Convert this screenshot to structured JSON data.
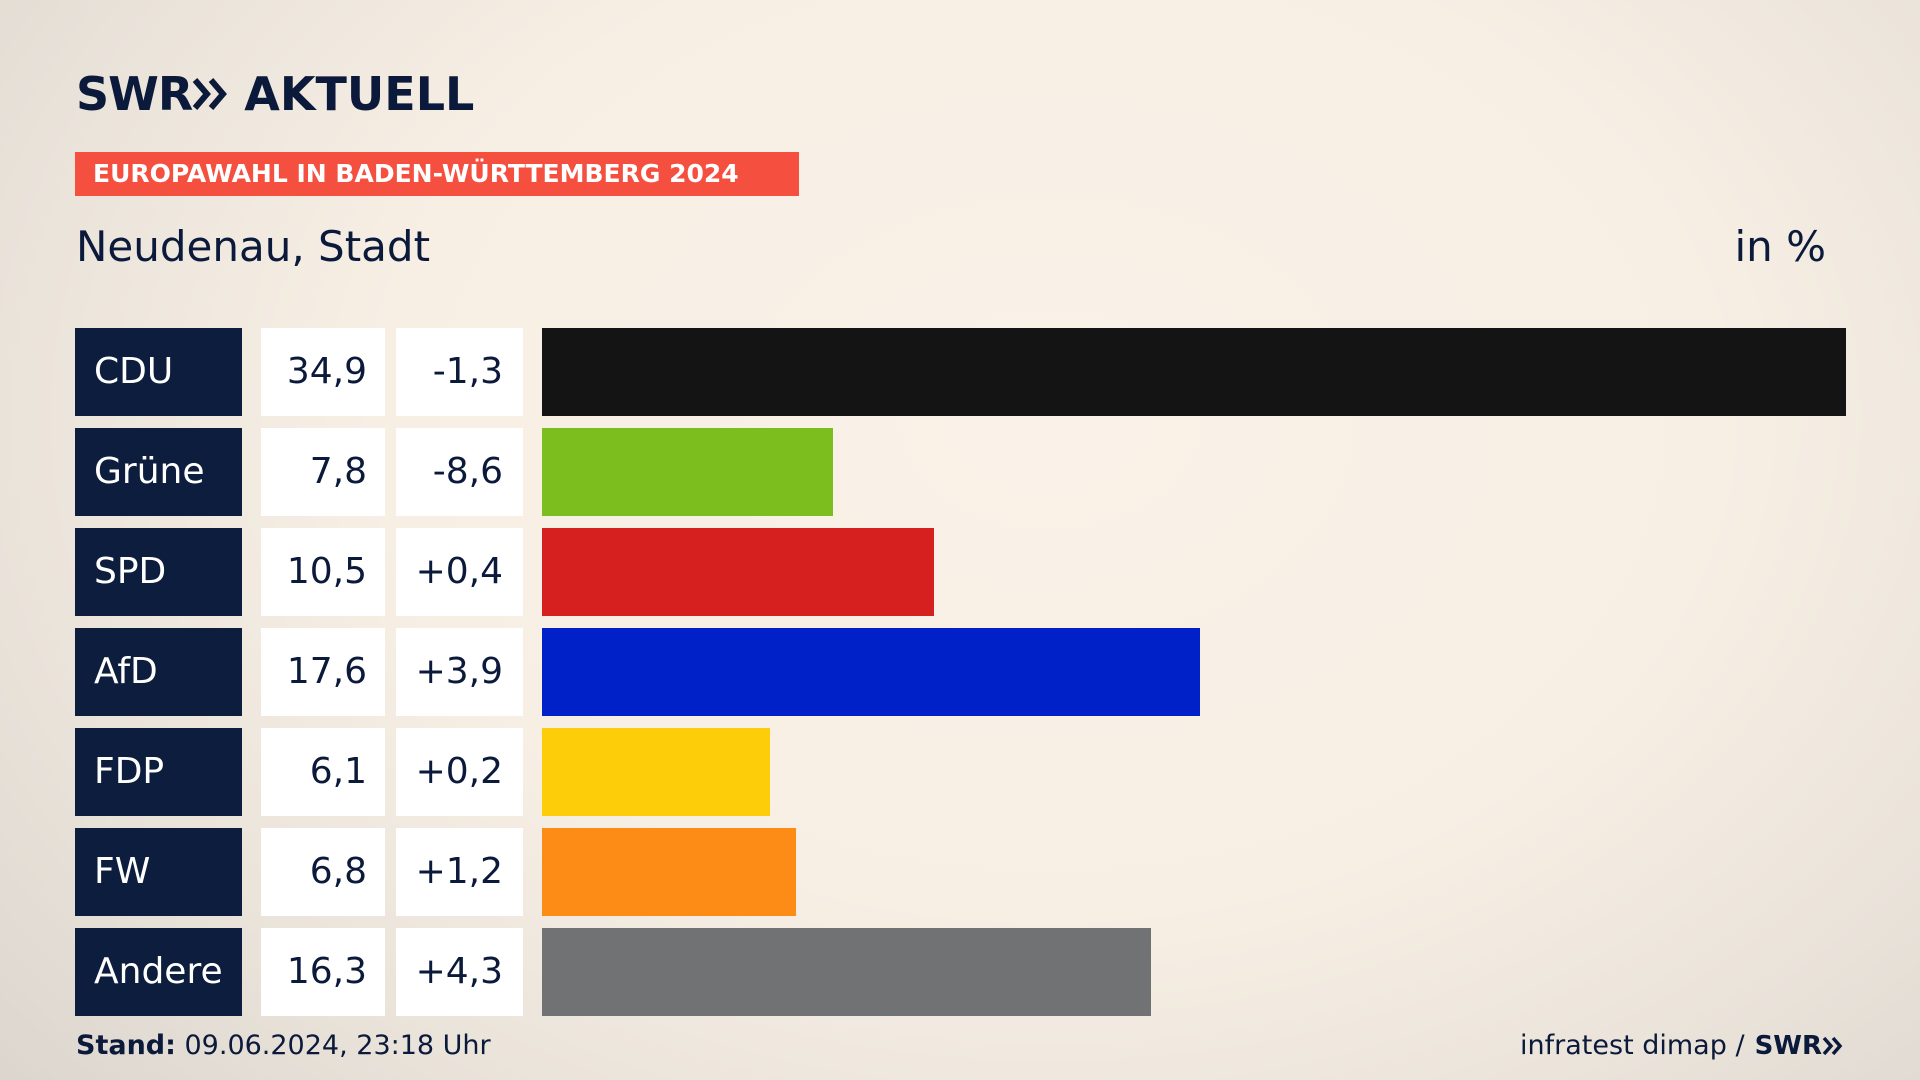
{
  "brand": {
    "logo_text": "SWR",
    "product": "AKTUELL"
  },
  "banner": "EUROPAWAHL IN BADEN-WÜRTTEMBERG 2024",
  "location": "Neudenau, Stadt",
  "unit": "in %",
  "colors": {
    "navy": "#0c1d3d",
    "banner": "#f5503f"
  },
  "chart_data": {
    "type": "bar",
    "orientation": "horizontal",
    "categories": [
      "CDU",
      "Grüne",
      "SPD",
      "AfD",
      "FDP",
      "FW",
      "Andere"
    ],
    "values": [
      34.9,
      7.8,
      10.5,
      17.6,
      6.1,
      6.8,
      16.3
    ],
    "value_labels": [
      "34,9",
      "7,8",
      "10,5",
      "17,6",
      "6,1",
      "6,8",
      "16,3"
    ],
    "changes": [
      -1.3,
      -8.6,
      0.4,
      3.9,
      0.2,
      1.2,
      4.3
    ],
    "change_labels": [
      "-1,3",
      "-8,6",
      "+0,4",
      "+3,9",
      "+0,2",
      "+1,2",
      "+4,3"
    ],
    "colors": [
      "#141414",
      "#7cbe1e",
      "#d61f1f",
      "#0021c8",
      "#fecd0a",
      "#fd8c17",
      "#717273"
    ],
    "xlim": [
      0,
      34.9
    ]
  },
  "footer": {
    "stand_label": "Stand:",
    "stand_value": " 09.06.2024, 23:18 Uhr",
    "source": "infratest dimap /",
    "source_brand": "SWR"
  }
}
